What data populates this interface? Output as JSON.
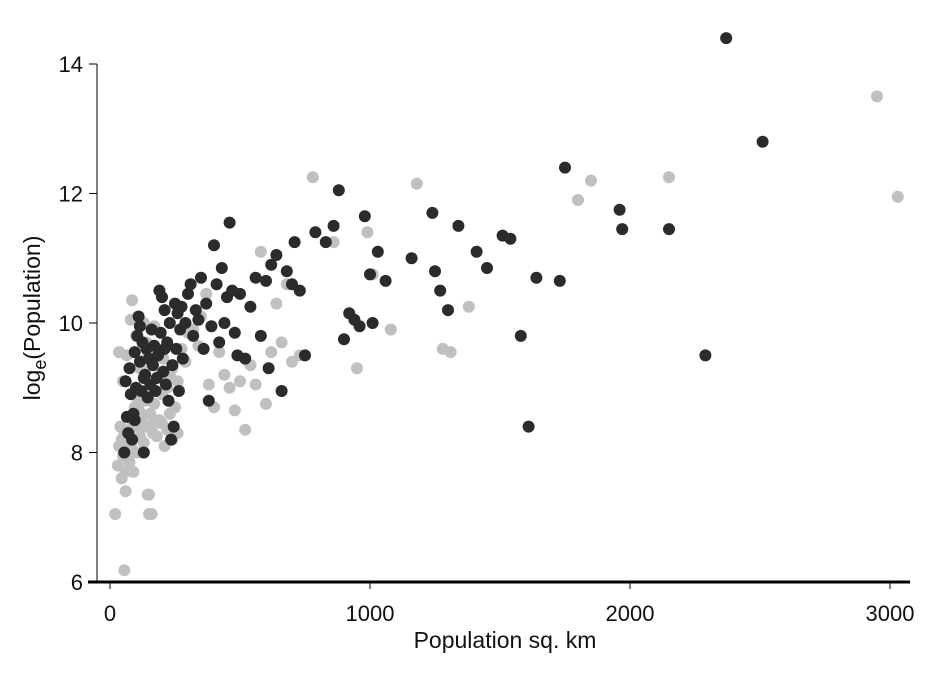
{
  "chart_data": {
    "type": "scatter",
    "title": "",
    "xlabel": "Population sq. km",
    "ylabel_prefix": "log",
    "ylabel_subscript": "e",
    "ylabel_suffix": "(Population)",
    "xlim": [
      -60,
      3080
    ],
    "ylim": [
      6,
      14.6
    ],
    "x_ticks": [
      0,
      1000,
      2000,
      3000
    ],
    "x_tick_labels": [
      "0",
      "1000",
      "2000",
      "3000"
    ],
    "y_ticks": [
      6,
      8,
      10,
      12,
      14
    ],
    "y_tick_labels": [
      "6",
      "8",
      "10",
      "12",
      "14"
    ],
    "grid": false,
    "legend": "none",
    "colors": {
      "series_1": "#c0c0c0",
      "series_2": "#2b2b2b",
      "axis": "#000000"
    },
    "series": [
      {
        "color": "#c0c0c0",
        "points": [
          [
            20,
            7.05
          ],
          [
            55,
            6.18
          ],
          [
            30,
            7.8
          ],
          [
            35,
            8.1
          ],
          [
            40,
            8.4
          ],
          [
            45,
            7.6
          ],
          [
            50,
            7.95
          ],
          [
            55,
            8.3
          ],
          [
            60,
            7.7
          ],
          [
            65,
            8.55
          ],
          [
            70,
            8.2
          ],
          [
            75,
            7.85
          ],
          [
            80,
            8.1
          ],
          [
            85,
            8.0
          ],
          [
            90,
            8.45
          ],
          [
            95,
            8.7
          ],
          [
            100,
            8.35
          ],
          [
            105,
            8.0
          ],
          [
            110,
            8.65
          ],
          [
            115,
            8.25
          ],
          [
            120,
            8.9
          ],
          [
            125,
            8.5
          ],
          [
            130,
            8.15
          ],
          [
            135,
            8.8
          ],
          [
            140,
            8.4
          ],
          [
            145,
            7.35
          ],
          [
            150,
            7.05
          ],
          [
            155,
            8.6
          ],
          [
            160,
            8.95
          ],
          [
            165,
            8.3
          ],
          [
            170,
            8.75
          ],
          [
            180,
            8.25
          ],
          [
            190,
            8.5
          ],
          [
            200,
            8.9
          ],
          [
            210,
            8.1
          ],
          [
            220,
            8.35
          ],
          [
            230,
            8.6
          ],
          [
            240,
            8.2
          ],
          [
            250,
            8.7
          ],
          [
            35,
            9.55
          ],
          [
            50,
            9.1
          ],
          [
            65,
            9.5
          ],
          [
            80,
            10.05
          ],
          [
            85,
            10.35
          ],
          [
            100,
            9.8
          ],
          [
            115,
            9.3
          ],
          [
            130,
            10.0
          ],
          [
            140,
            9.7
          ],
          [
            160,
            9.35
          ],
          [
            175,
            9.6
          ],
          [
            190,
            9.2
          ],
          [
            205,
            9.45
          ],
          [
            220,
            9.0
          ],
          [
            240,
            9.3
          ],
          [
            260,
            9.1
          ],
          [
            275,
            9.6
          ],
          [
            290,
            9.4
          ],
          [
            300,
            9.85
          ],
          [
            320,
            9.9
          ],
          [
            340,
            9.65
          ],
          [
            350,
            10.1
          ],
          [
            370,
            10.45
          ],
          [
            380,
            9.05
          ],
          [
            400,
            8.7
          ],
          [
            420,
            9.55
          ],
          [
            440,
            9.2
          ],
          [
            460,
            9.0
          ],
          [
            480,
            8.65
          ],
          [
            500,
            9.1
          ],
          [
            520,
            8.35
          ],
          [
            540,
            9.35
          ],
          [
            560,
            9.05
          ],
          [
            580,
            11.1
          ],
          [
            600,
            8.75
          ],
          [
            620,
            9.55
          ],
          [
            640,
            10.3
          ],
          [
            660,
            9.7
          ],
          [
            680,
            10.6
          ],
          [
            700,
            9.4
          ],
          [
            730,
            9.5
          ],
          [
            780,
            12.25
          ],
          [
            860,
            11.25
          ],
          [
            950,
            9.3
          ],
          [
            990,
            11.4
          ],
          [
            1010,
            10.75
          ],
          [
            1080,
            9.9
          ],
          [
            1180,
            12.15
          ],
          [
            1280,
            9.6
          ],
          [
            1310,
            9.55
          ],
          [
            1380,
            10.25
          ],
          [
            1800,
            11.9
          ],
          [
            1850,
            12.2
          ],
          [
            2150,
            12.25
          ],
          [
            2950,
            13.5
          ],
          [
            3030,
            11.95
          ],
          [
            100,
            8.45
          ],
          [
            120,
            8.6
          ],
          [
            150,
            7.35
          ],
          [
            160,
            7.05
          ],
          [
            170,
            8.45
          ],
          [
            60,
            7.4
          ],
          [
            45,
            8.2
          ],
          [
            75,
            8.35
          ],
          [
            90,
            7.7
          ],
          [
            110,
            8.8
          ],
          [
            140,
            9.45
          ],
          [
            170,
            9.95
          ],
          [
            200,
            8.45
          ],
          [
            230,
            9.2
          ],
          [
            260,
            8.3
          ]
        ]
      },
      {
        "color": "#2b2b2b",
        "points": [
          [
            55,
            8.0
          ],
          [
            60,
            9.1
          ],
          [
            65,
            8.55
          ],
          [
            70,
            8.3
          ],
          [
            75,
            9.3
          ],
          [
            80,
            8.9
          ],
          [
            85,
            8.2
          ],
          [
            90,
            8.6
          ],
          [
            95,
            9.55
          ],
          [
            100,
            9.0
          ],
          [
            105,
            9.8
          ],
          [
            110,
            10.1
          ],
          [
            115,
            9.4
          ],
          [
            120,
            8.95
          ],
          [
            125,
            9.7
          ],
          [
            130,
            8.0
          ],
          [
            135,
            9.2
          ],
          [
            140,
            9.6
          ],
          [
            145,
            8.85
          ],
          [
            150,
            9.45
          ],
          [
            155,
            9.05
          ],
          [
            160,
            9.9
          ],
          [
            165,
            9.35
          ],
          [
            170,
            9.65
          ],
          [
            175,
            8.95
          ],
          [
            180,
            9.15
          ],
          [
            185,
            9.5
          ],
          [
            190,
            10.5
          ],
          [
            195,
            9.85
          ],
          [
            200,
            10.4
          ],
          [
            205,
            9.25
          ],
          [
            210,
            10.2
          ],
          [
            215,
            9.05
          ],
          [
            220,
            9.7
          ],
          [
            225,
            8.8
          ],
          [
            230,
            10.0
          ],
          [
            235,
            8.2
          ],
          [
            240,
            9.35
          ],
          [
            245,
            8.4
          ],
          [
            250,
            10.3
          ],
          [
            255,
            9.6
          ],
          [
            260,
            10.15
          ],
          [
            265,
            8.95
          ],
          [
            270,
            9.9
          ],
          [
            275,
            10.25
          ],
          [
            280,
            9.45
          ],
          [
            300,
            10.45
          ],
          [
            310,
            10.6
          ],
          [
            320,
            9.8
          ],
          [
            330,
            10.2
          ],
          [
            340,
            10.05
          ],
          [
            350,
            10.7
          ],
          [
            360,
            9.6
          ],
          [
            370,
            10.3
          ],
          [
            380,
            8.8
          ],
          [
            390,
            9.95
          ],
          [
            400,
            11.2
          ],
          [
            410,
            10.6
          ],
          [
            420,
            9.7
          ],
          [
            430,
            10.85
          ],
          [
            440,
            10.0
          ],
          [
            450,
            10.4
          ],
          [
            460,
            11.55
          ],
          [
            470,
            10.5
          ],
          [
            480,
            9.85
          ],
          [
            490,
            9.5
          ],
          [
            500,
            10.45
          ],
          [
            520,
            9.45
          ],
          [
            540,
            10.25
          ],
          [
            560,
            10.7
          ],
          [
            580,
            9.8
          ],
          [
            600,
            10.65
          ],
          [
            610,
            9.3
          ],
          [
            620,
            10.9
          ],
          [
            640,
            11.05
          ],
          [
            660,
            8.95
          ],
          [
            680,
            10.8
          ],
          [
            700,
            10.6
          ],
          [
            710,
            11.25
          ],
          [
            730,
            10.5
          ],
          [
            750,
            9.5
          ],
          [
            790,
            11.4
          ],
          [
            830,
            11.25
          ],
          [
            860,
            11.5
          ],
          [
            880,
            12.05
          ],
          [
            900,
            9.75
          ],
          [
            920,
            10.15
          ],
          [
            940,
            10.05
          ],
          [
            960,
            9.95
          ],
          [
            980,
            11.65
          ],
          [
            1000,
            10.75
          ],
          [
            1010,
            10.0
          ],
          [
            1030,
            11.1
          ],
          [
            1060,
            10.65
          ],
          [
            1160,
            11.0
          ],
          [
            1240,
            11.7
          ],
          [
            1250,
            10.8
          ],
          [
            1270,
            10.5
          ],
          [
            1300,
            10.2
          ],
          [
            1340,
            11.5
          ],
          [
            1410,
            11.1
          ],
          [
            1450,
            10.85
          ],
          [
            1510,
            11.35
          ],
          [
            1540,
            11.3
          ],
          [
            1580,
            9.8
          ],
          [
            1610,
            8.4
          ],
          [
            1640,
            10.7
          ],
          [
            1730,
            10.65
          ],
          [
            1750,
            12.4
          ],
          [
            1960,
            11.75
          ],
          [
            1970,
            11.45
          ],
          [
            2150,
            11.45
          ],
          [
            2290,
            9.5
          ],
          [
            2370,
            14.4
          ],
          [
            2510,
            12.8
          ],
          [
            95,
            8.5
          ],
          [
            115,
            9.95
          ],
          [
            130,
            9.15
          ],
          [
            210,
            9.6
          ],
          [
            290,
            10.0
          ]
        ]
      }
    ]
  }
}
